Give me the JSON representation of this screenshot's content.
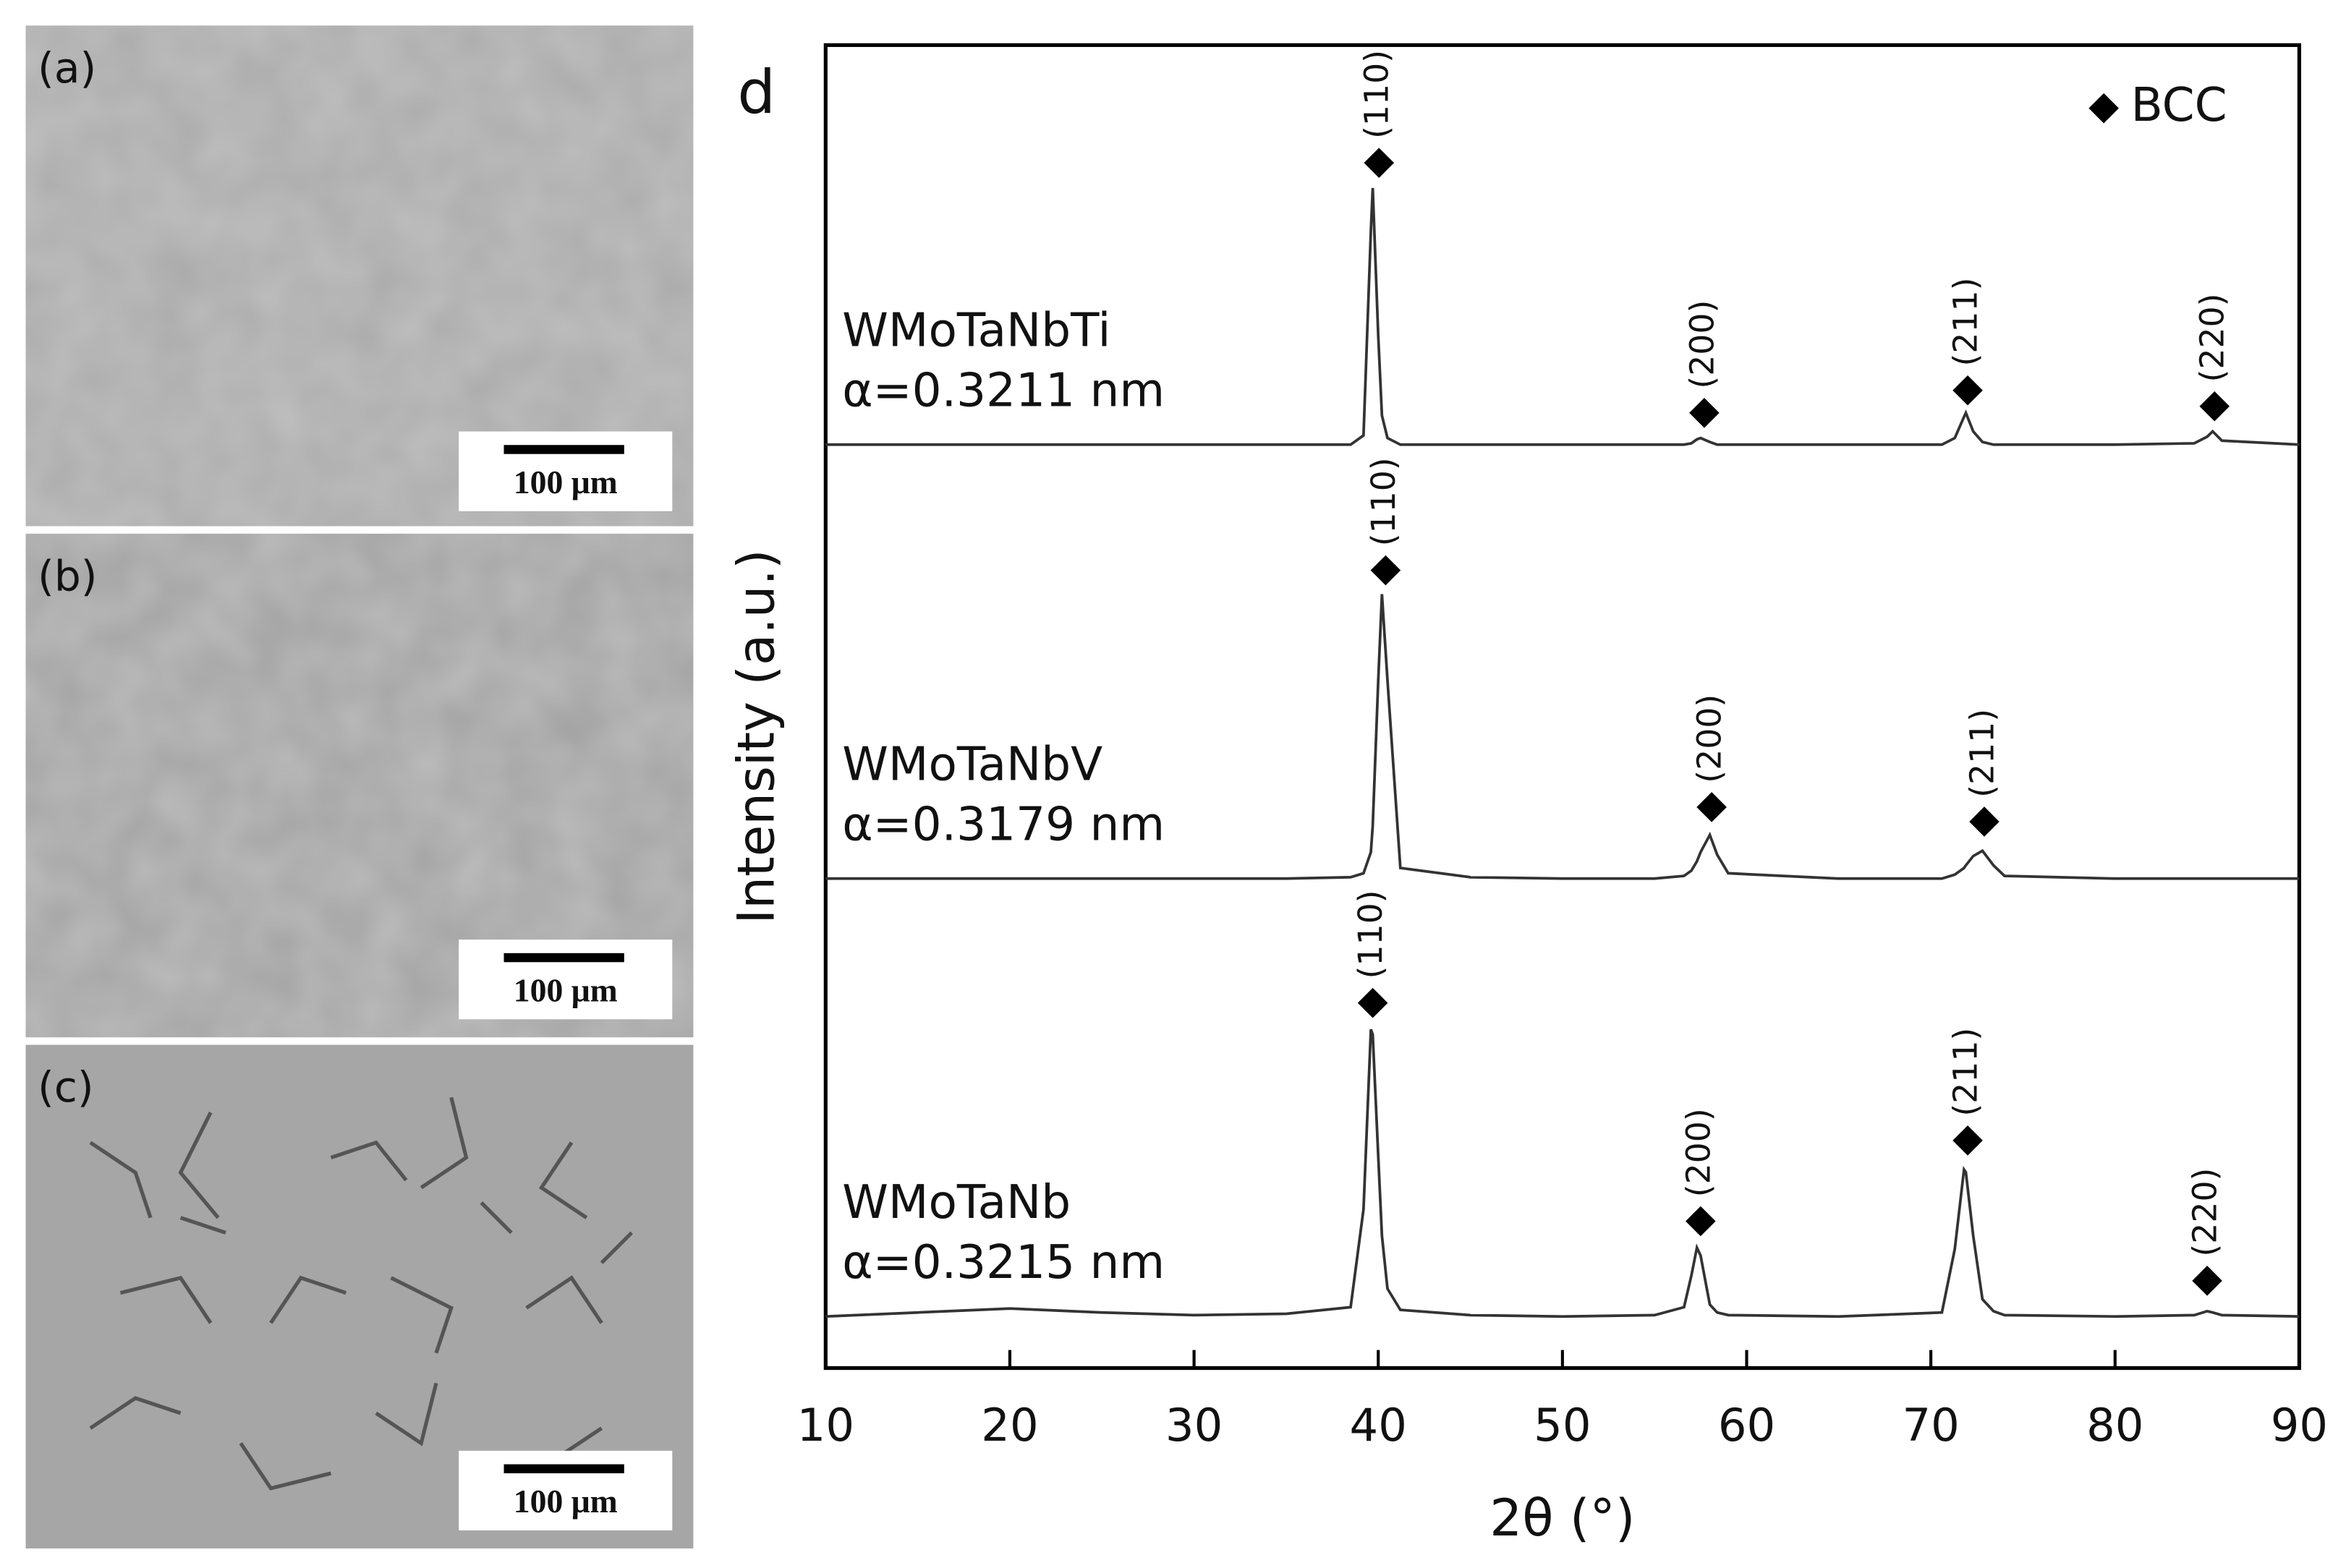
{
  "panels": [
    {
      "label": "(a)",
      "scale_bar": "100 μm"
    },
    {
      "label": "(b)",
      "scale_bar": "100 μm"
    },
    {
      "label": "(c)",
      "scale_bar": "100 μm"
    }
  ],
  "chart_data": {
    "type": "line",
    "panel_label": "d",
    "xlabel": "2θ (°)",
    "ylabel": "Intensity (a.u.)",
    "xlim": [
      10,
      90
    ],
    "xticks": [
      10,
      20,
      30,
      40,
      50,
      60,
      70,
      80,
      90
    ],
    "ylim": [
      0,
      100
    ],
    "legend": "upper right",
    "legend_label": "BCC",
    "x": [
      10,
      15,
      20,
      25,
      30,
      35,
      38.5,
      39.2,
      39.6,
      39.7,
      40.0,
      40.2,
      40.5,
      41.2,
      45,
      50,
      55,
      56.6,
      57.0,
      57.3,
      57.5,
      58.0,
      58.4,
      59,
      65,
      70.6,
      71.3,
      71.8,
      71.9,
      72.3,
      72.8,
      73.4,
      74,
      80,
      84.3,
      85.0,
      85.3,
      85.8,
      90
    ],
    "series": [
      {
        "name": "WMoTaNbTi",
        "lattice": "α=0.3211 nm",
        "color": "#333333",
        "values": [
          69.8,
          69.8,
          69.8,
          69.8,
          69.8,
          69.8,
          69.8,
          70.5,
          86,
          89.2,
          78,
          72,
          70.3,
          69.8,
          69.8,
          69.8,
          69.8,
          69.8,
          69.9,
          70.2,
          70.3,
          70.0,
          69.8,
          69.8,
          69.8,
          69.8,
          70.3,
          71.9,
          72.2,
          70.8,
          70.0,
          69.8,
          69.8,
          69.8,
          69.9,
          70.4,
          70.8,
          70.1,
          69.8
        ]
      },
      {
        "name": "WMoTaNbV",
        "lattice": "α=0.3179 nm",
        "color": "#333333",
        "values": [
          37,
          37,
          37,
          37,
          37,
          37,
          37.1,
          37.4,
          39,
          41,
          52,
          58.5,
          52,
          37.8,
          37.1,
          37,
          37,
          37.2,
          37.6,
          38.3,
          39,
          40.3,
          38.8,
          37.4,
          37,
          37,
          37.3,
          37.8,
          38.0,
          38.7,
          39.1,
          38.0,
          37.2,
          37,
          37,
          37,
          37,
          37,
          37
        ]
      },
      {
        "name": "WMoTaNb",
        "lattice": "α=0.3215 nm",
        "color": "#333333",
        "values": [
          3.9,
          4.2,
          4.5,
          4.2,
          4.0,
          4.1,
          4.6,
          12,
          25.6,
          25.2,
          16,
          10,
          6,
          4.4,
          4.0,
          3.9,
          4.0,
          4.6,
          7,
          9.1,
          8.5,
          4.8,
          4.2,
          4.0,
          3.9,
          4.2,
          9,
          15.0,
          14.8,
          10,
          5.2,
          4.3,
          4.0,
          3.9,
          4.0,
          4.3,
          4.2,
          4.0,
          3.9
        ]
      }
    ],
    "annotations": [
      {
        "text": "(110)",
        "x": 40.04,
        "y": 91.1
      },
      {
        "text": "(200)",
        "x": 57.7,
        "y": 72.2
      },
      {
        "text": "(211)",
        "x": 72.0,
        "y": 73.9
      },
      {
        "text": "(220)",
        "x": 85.4,
        "y": 72.7
      },
      {
        "text": "(110)",
        "x": 40.4,
        "y": 60.3
      },
      {
        "text": "(200)",
        "x": 58.1,
        "y": 42.4
      },
      {
        "text": "(211)",
        "x": 72.9,
        "y": 41.3
      },
      {
        "text": "(110)",
        "x": 39.7,
        "y": 27.6
      },
      {
        "text": "(200)",
        "x": 57.5,
        "y": 11.1
      },
      {
        "text": "(211)",
        "x": 72.0,
        "y": 17.2
      },
      {
        "text": "(220)",
        "x": 85.0,
        "y": 6.6
      }
    ]
  }
}
